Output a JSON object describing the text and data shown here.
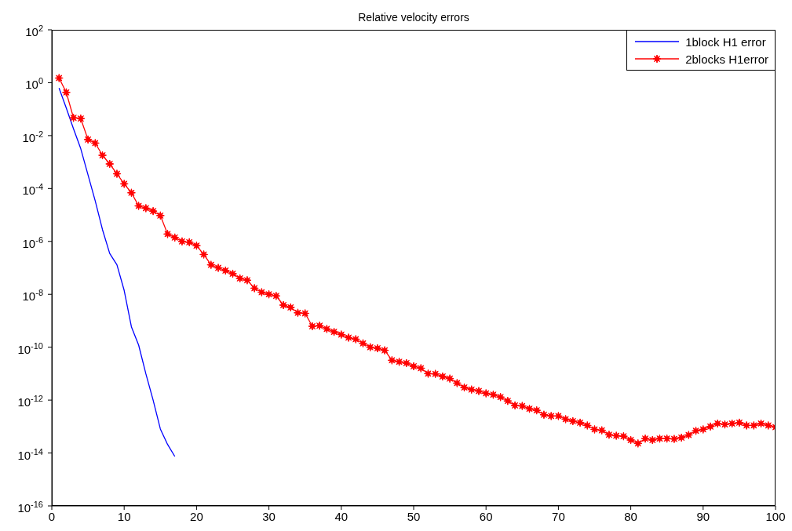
{
  "chart_data": {
    "type": "line",
    "title": "Relative velocity errors",
    "log": "y",
    "grid": false,
    "legend": "top right",
    "x": [
      1,
      2,
      3,
      4,
      5,
      6,
      7,
      8,
      9,
      10,
      11,
      12,
      13,
      14,
      15,
      16,
      17,
      18,
      19,
      20,
      21,
      22,
      23,
      24,
      25,
      26,
      27,
      28,
      29,
      30,
      31,
      32,
      33,
      34,
      35,
      36,
      37,
      38,
      39,
      40,
      41,
      42,
      43,
      44,
      45,
      46,
      47,
      48,
      49,
      50,
      51,
      52,
      53,
      54,
      55,
      56,
      57,
      58,
      59,
      60,
      61,
      62,
      63,
      64,
      65,
      66,
      67,
      68,
      69,
      70,
      71,
      72,
      73,
      74,
      75,
      76,
      77,
      78,
      79,
      80,
      81,
      82,
      83,
      84,
      85,
      86,
      87,
      88,
      89,
      90,
      91,
      92,
      93,
      94,
      95,
      96,
      97,
      98,
      99,
      100
    ],
    "xlim": [
      0,
      100
    ],
    "xticks": [
      0,
      10,
      20,
      30,
      40,
      50,
      60,
      70,
      80,
      90,
      100
    ],
    "ylim": [
      1e-16,
      100
    ],
    "yticks": [
      {
        "value": 100,
        "label": "10$^{2}$"
      },
      {
        "value": 1,
        "label": "10$^{0}$"
      },
      {
        "value": 0.01,
        "label": "10$^{-2}$"
      },
      {
        "value": 0.0001,
        "label": "10$^{-4}$"
      },
      {
        "value": 1e-06,
        "label": "10$^{-6}$"
      },
      {
        "value": 1e-08,
        "label": "10$^{-8}$"
      },
      {
        "value": 1e-10,
        "label": "10$^{-10}$"
      },
      {
        "value": 1e-12,
        "label": "10$^{-12}$"
      },
      {
        "value": 1e-14,
        "label": "10$^{-14}$"
      },
      {
        "value": 1e-16,
        "label": "10$^{-16}$"
      }
    ],
    "series": [
      {
        "name": "1block H1 error",
        "color": "#0000ff",
        "marker": "none",
        "x": [
          1,
          2,
          3,
          4,
          5,
          6,
          7,
          8,
          9,
          10,
          11,
          12,
          13,
          14,
          15,
          16,
          17
        ],
        "values": [
          0.63,
          0.11,
          0.018,
          0.0032,
          0.00033,
          3.4e-05,
          2.8e-06,
          3.5e-07,
          1.3e-07,
          1.4e-08,
          5.9e-10,
          1.2e-10,
          9.8e-12,
          1e-12,
          8.1e-14,
          2.1e-14,
          7.4e-15
        ]
      },
      {
        "name": "2blocks H1error",
        "color": "#ff0000",
        "marker": "star",
        "values": [
          1.5,
          0.43,
          0.047,
          0.044,
          0.0071,
          0.0052,
          0.0018,
          0.00085,
          0.00036,
          0.00015,
          6.9e-05,
          2.2e-05,
          1.8e-05,
          1.4e-05,
          9.5e-06,
          1.9e-06,
          1.4e-06,
          1e-06,
          9.3e-07,
          6.9e-07,
          3.2e-07,
          1.3e-07,
          1e-07,
          7.9e-08,
          6e-08,
          4e-08,
          3.4e-08,
          1.7e-08,
          1.2e-08,
          1e-08,
          8.7e-09,
          3.9e-09,
          3.2e-09,
          2e-09,
          1.9e-09,
          6.2e-10,
          6.5e-10,
          4.9e-10,
          3.8e-10,
          3e-10,
          2.3e-10,
          2e-10,
          1.4e-10,
          1e-10,
          9.1e-11,
          7.6e-11,
          3.2e-11,
          2.8e-11,
          2.5e-11,
          1.9e-11,
          1.6e-11,
          1e-11,
          9.8e-12,
          7.8e-12,
          6.5e-12,
          4.4e-12,
          3e-12,
          2.5e-12,
          2.2e-12,
          1.8e-12,
          1.6e-12,
          1.3e-12,
          9.3e-13,
          6.3e-13,
          6e-13,
          4.7e-13,
          4.1e-13,
          2.8e-13,
          2.5e-13,
          2.5e-13,
          1.9e-13,
          1.6e-13,
          1.4e-13,
          1.1e-13,
          7.8e-14,
          7.2e-14,
          4.9e-14,
          4.5e-14,
          4.3e-14,
          3.1e-14,
          2.3e-14,
          3.5e-14,
          3.1e-14,
          3.5e-14,
          3.5e-14,
          3.4e-14,
          3.8e-14,
          4.8e-14,
          6.9e-14,
          7.8e-14,
          1e-13,
          1.3e-13,
          1.2e-13,
          1.3e-13,
          1.4e-13,
          1.1e-13,
          1.1e-13,
          1.3e-13,
          1.1e-13,
          9.5e-14
        ]
      }
    ]
  }
}
